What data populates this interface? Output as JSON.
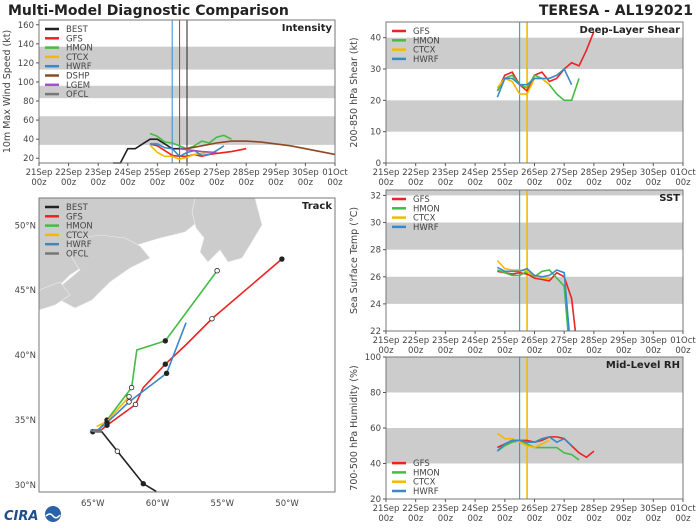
{
  "header": {
    "title": "Multi-Model Diagnostic Comparison",
    "storm": "TERESA - AL192021"
  },
  "logo": {
    "text": "CIRA"
  },
  "colors": {
    "BEST": "#222222",
    "GFS": "#ee2222",
    "HMON": "#44bb44",
    "CTCX": "#f5b800",
    "HWRF": "#3a88c8",
    "DSHP": "#8b4a22",
    "LGEM": "#a050c8",
    "OFCL": "#777777",
    "band": "#cccccc",
    "land": "#cccccc"
  },
  "time_ticks": {
    "days": [
      "21Sep",
      "22Sep",
      "23Sep",
      "24Sep",
      "25Sep",
      "26Sep",
      "27Sep",
      "28Sep",
      "29Sep",
      "30Sep",
      "01Oct"
    ],
    "hour": "00z"
  },
  "chart_data": [
    {
      "id": "intensity",
      "type": "line",
      "title": "Intensity",
      "ylabel": "10m Max Wind Speed (kt)",
      "ylim": [
        15,
        165
      ],
      "yticks": [
        20,
        40,
        60,
        80,
        100,
        120,
        140,
        160
      ],
      "bands": [
        [
          34,
          64
        ],
        [
          83,
          96
        ],
        [
          113,
          137
        ]
      ],
      "legend": [
        "BEST",
        "GFS",
        "HMON",
        "CTCX",
        "HWRF",
        "DSHP",
        "LGEM",
        "OFCL"
      ],
      "legend_position": "top-left",
      "vlines": [
        {
          "model": "HWRF",
          "t": "25Sep 12z"
        },
        {
          "model": "DSHP",
          "t": "25Sep 18z"
        },
        {
          "model": "OFCL",
          "t": "26Sep 00z"
        },
        {
          "model": "BEST",
          "t": "26Sep 00z"
        }
      ],
      "series": [
        {
          "name": "BEST",
          "x": [
            "23Sep 12z",
            "23Sep 18z",
            "24Sep 00z",
            "24Sep 06z",
            "24Sep 12z",
            "24Sep 18z",
            "25Sep 00z",
            "25Sep 06z",
            "25Sep 12z",
            "25Sep 18z",
            "26Sep 00z"
          ],
          "values": [
            15,
            15,
            30,
            30,
            35,
            40,
            40,
            35,
            30,
            30,
            30
          ]
        },
        {
          "name": "GFS",
          "x": [
            "24Sep 18z",
            "25Sep 00z",
            "25Sep 06z",
            "25Sep 12z",
            "25Sep 18z",
            "26Sep 00z",
            "26Sep 06z",
            "26Sep 12z",
            "26Sep 18z",
            "27Sep 00z",
            "27Sep 12z",
            "28Sep 00z"
          ],
          "values": [
            35,
            33,
            28,
            23,
            22,
            22,
            24,
            22,
            24,
            25,
            27,
            30
          ]
        },
        {
          "name": "HMON",
          "x": [
            "24Sep 18z",
            "25Sep 00z",
            "25Sep 06z",
            "25Sep 12z",
            "25Sep 18z",
            "26Sep 00z",
            "26Sep 06z",
            "26Sep 12z",
            "26Sep 18z",
            "27Sep 00z",
            "27Sep 06z",
            "27Sep 12z"
          ],
          "values": [
            46,
            43,
            37,
            36,
            33,
            30,
            33,
            38,
            36,
            42,
            44,
            40
          ]
        },
        {
          "name": "CTCX",
          "x": [
            "24Sep 18z",
            "25Sep 00z",
            "25Sep 06z",
            "25Sep 12z",
            "25Sep 18z",
            "26Sep 00z",
            "26Sep 06z",
            "26Sep 12z",
            "26Sep 18z"
          ],
          "values": [
            34,
            26,
            22,
            22,
            19,
            21,
            24,
            25,
            26
          ]
        },
        {
          "name": "HWRF",
          "x": [
            "24Sep 18z",
            "25Sep 00z",
            "25Sep 06z",
            "25Sep 12z",
            "25Sep 18z",
            "26Sep 00z",
            "26Sep 06z",
            "26Sep 12z",
            "26Sep 18z",
            "27Sep 00z",
            "27Sep 06z"
          ],
          "values": [
            35,
            35,
            31,
            30,
            22,
            26,
            28,
            23,
            24,
            28,
            33
          ]
        },
        {
          "name": "DSHP",
          "x": [
            "25Sep 18z",
            "26Sep 00z",
            "26Sep 12z",
            "27Sep 00z",
            "27Sep 12z",
            "28Sep 00z",
            "28Sep 12z",
            "29Sep 00z",
            "29Sep 12z",
            "30Sep 00z",
            "30Sep 12z",
            "01Oct 00z"
          ],
          "values": [
            30,
            30,
            33,
            36,
            38,
            38,
            37,
            35,
            33,
            30,
            27,
            24
          ]
        },
        {
          "name": "LGEM",
          "x": [
            "25Sep 18z",
            "26Sep 00z",
            "26Sep 12z",
            "27Sep 00z"
          ],
          "values": [
            30,
            29,
            27,
            26
          ]
        }
      ]
    },
    {
      "id": "shear",
      "type": "line",
      "title": "Deep-Layer Shear",
      "ylabel": "200-850 hPa Shear (kt)",
      "ylim": [
        0,
        45
      ],
      "yticks": [
        0,
        10,
        20,
        30,
        40
      ],
      "bands": [
        [
          10,
          20
        ],
        [
          30,
          40
        ]
      ],
      "legend": [
        "GFS",
        "HMON",
        "CTCX",
        "HWRF"
      ],
      "legend_position": "top-left",
      "vlines": [
        {
          "model": "HWRF",
          "t": "25Sep 12z"
        },
        {
          "model": "CTCX",
          "t": "25Sep 18z"
        }
      ],
      "series": [
        {
          "name": "GFS",
          "x": [
            "24Sep 18z",
            "25Sep 00z",
            "25Sep 06z",
            "25Sep 12z",
            "25Sep 18z",
            "26Sep 00z",
            "26Sep 06z",
            "26Sep 12z",
            "26Sep 18z",
            "27Sep 00z",
            "27Sep 06z",
            "27Sep 12z",
            "27Sep 18z",
            "28Sep 00z"
          ],
          "values": [
            23,
            28,
            29,
            25,
            23,
            28,
            29,
            26,
            27,
            30,
            32,
            31,
            36,
            42
          ]
        },
        {
          "name": "HMON",
          "x": [
            "24Sep 18z",
            "25Sep 00z",
            "25Sep 06z",
            "25Sep 12z",
            "25Sep 18z",
            "26Sep 00z",
            "26Sep 06z",
            "26Sep 12z",
            "26Sep 18z",
            "27Sep 00z",
            "27Sep 06z",
            "27Sep 12z"
          ],
          "values": [
            23,
            27,
            28,
            25,
            24,
            28,
            27,
            25,
            22,
            20,
            20,
            27
          ]
        },
        {
          "name": "CTCX",
          "x": [
            "24Sep 18z",
            "25Sep 00z",
            "25Sep 06z",
            "25Sep 12z",
            "25Sep 18z",
            "26Sep 00z",
            "26Sep 06z",
            "26Sep 12z"
          ],
          "values": [
            24,
            27,
            26,
            22,
            22,
            27,
            27,
            25
          ]
        },
        {
          "name": "HWRF",
          "x": [
            "24Sep 18z",
            "25Sep 00z",
            "25Sep 06z",
            "25Sep 12z",
            "25Sep 18z",
            "26Sep 00z",
            "26Sep 06z",
            "26Sep 12z",
            "26Sep 18z",
            "27Sep 00z",
            "27Sep 06z"
          ],
          "values": [
            21,
            27,
            27,
            25,
            25,
            27,
            27,
            27,
            28,
            30,
            25
          ]
        }
      ]
    },
    {
      "id": "sst",
      "type": "line",
      "title": "SST",
      "ylabel": "Sea Surface Temp (°C)",
      "ylim": [
        22,
        32.4
      ],
      "yticks": [
        22,
        24,
        26,
        28,
        30,
        32
      ],
      "bands": [
        [
          24,
          26
        ],
        [
          28,
          30
        ],
        [
          32,
          32.4
        ]
      ],
      "legend": [
        "GFS",
        "HMON",
        "CTCX",
        "HWRF"
      ],
      "legend_position": "top-left",
      "vlines": [
        {
          "model": "HWRF",
          "t": "25Sep 12z"
        },
        {
          "model": "CTCX",
          "t": "25Sep 18z"
        }
      ],
      "series": [
        {
          "name": "GFS",
          "x": [
            "24Sep 18z",
            "25Sep 00z",
            "25Sep 06z",
            "25Sep 12z",
            "25Sep 18z",
            "26Sep 00z",
            "26Sep 06z",
            "26Sep 12z",
            "26Sep 18z",
            "27Sep 00z",
            "27Sep 06z",
            "27Sep 09z"
          ],
          "values": [
            26.4,
            26.3,
            26.2,
            26.3,
            26.2,
            25.9,
            25.8,
            25.7,
            26.3,
            26.0,
            24.4,
            22
          ]
        },
        {
          "name": "HMON",
          "x": [
            "24Sep 18z",
            "25Sep 00z",
            "25Sep 06z",
            "25Sep 12z",
            "25Sep 18z",
            "26Sep 00z",
            "26Sep 06z",
            "26Sep 12z",
            "26Sep 18z",
            "27Sep 00z",
            "27Sep 03z"
          ],
          "values": [
            26.5,
            26.3,
            26.1,
            26.1,
            26.4,
            26.0,
            26.4,
            26.5,
            25.9,
            25.3,
            22
          ]
        },
        {
          "name": "CTCX",
          "x": [
            "24Sep 18z",
            "25Sep 00z",
            "25Sep 06z",
            "25Sep 12z",
            "25Sep 18z",
            "26Sep 00z",
            "26Sep 06z",
            "26Sep 12z"
          ],
          "values": [
            27.2,
            26.6,
            26.5,
            26.5,
            26.4,
            26.1,
            25.9,
            25.9
          ]
        },
        {
          "name": "HWRF",
          "x": [
            "24Sep 18z",
            "25Sep 00z",
            "25Sep 06z",
            "25Sep 12z",
            "25Sep 18z",
            "26Sep 00z",
            "26Sep 06z",
            "26Sep 12z",
            "26Sep 18z",
            "27Sep 00z",
            "27Sep 04z"
          ],
          "values": [
            26.7,
            26.4,
            26.4,
            26.4,
            26.6,
            26.1,
            26.0,
            26.1,
            26.5,
            26.3,
            22
          ]
        }
      ]
    },
    {
      "id": "rh",
      "type": "line",
      "title": "Mid-Level RH",
      "ylabel": "700-500 hPa Humidity (%)",
      "ylim": [
        20,
        100
      ],
      "yticks": [
        20,
        40,
        60,
        80,
        100
      ],
      "bands": [
        [
          40,
          60
        ],
        [
          80,
          100
        ]
      ],
      "legend": [
        "GFS",
        "HMON",
        "CTCX",
        "HWRF"
      ],
      "legend_position": "bottom-left",
      "vlines": [
        {
          "model": "HWRF",
          "t": "25Sep 12z"
        },
        {
          "model": "CTCX",
          "t": "25Sep 18z"
        }
      ],
      "series": [
        {
          "name": "GFS",
          "x": [
            "24Sep 18z",
            "25Sep 00z",
            "25Sep 06z",
            "25Sep 12z",
            "25Sep 18z",
            "26Sep 00z",
            "26Sep 06z",
            "26Sep 12z",
            "26Sep 18z",
            "27Sep 00z",
            "27Sep 06z",
            "27Sep 12z",
            "27Sep 18z",
            "28Sep 00z"
          ],
          "values": [
            49,
            51,
            53,
            53,
            53,
            52,
            53,
            55,
            55,
            54,
            50,
            46,
            43.5,
            47
          ]
        },
        {
          "name": "HMON",
          "x": [
            "24Sep 18z",
            "25Sep 00z",
            "25Sep 06z",
            "25Sep 12z",
            "25Sep 18z",
            "26Sep 00z",
            "26Sep 06z",
            "26Sep 12z",
            "26Sep 18z",
            "27Sep 00z",
            "27Sep 06z",
            "27Sep 12z"
          ],
          "values": [
            47,
            50,
            52,
            53,
            51,
            49,
            49,
            49,
            49,
            46,
            45,
            42
          ]
        },
        {
          "name": "CTCX",
          "x": [
            "24Sep 18z",
            "25Sep 00z",
            "25Sep 06z",
            "25Sep 12z",
            "25Sep 18z",
            "26Sep 00z",
            "26Sep 06z",
            "26Sep 12z"
          ],
          "values": [
            57,
            54,
            54,
            52,
            50,
            49,
            51,
            53
          ]
        },
        {
          "name": "HWRF",
          "x": [
            "24Sep 18z",
            "25Sep 00z",
            "25Sep 06z",
            "25Sep 12z",
            "25Sep 18z",
            "26Sep 00z",
            "26Sep 06z",
            "26Sep 12z",
            "26Sep 18z",
            "27Sep 00z",
            "27Sep 06z"
          ],
          "values": [
            47,
            51,
            53,
            53,
            52,
            52,
            54,
            55,
            52,
            54,
            50
          ]
        }
      ]
    },
    {
      "id": "track",
      "type": "line",
      "title": "Track",
      "xlim": [
        -69.15,
        -46.3
      ],
      "ylim": [
        29.46,
        52.1
      ],
      "xticks": [
        {
          "v": -65,
          "label": "65°W"
        },
        {
          "v": -60,
          "label": "60°W"
        },
        {
          "v": -55,
          "label": "55°W"
        },
        {
          "v": -50,
          "label": "50°W"
        }
      ],
      "yticks": [
        {
          "v": 30,
          "label": "30°N"
        },
        {
          "v": 35,
          "label": "35°N"
        },
        {
          "v": 40,
          "label": "40°N"
        },
        {
          "v": 45,
          "label": "45°N"
        },
        {
          "v": 50,
          "label": "50°N"
        }
      ],
      "legend": [
        "BEST",
        "GFS",
        "HMON",
        "CTCX",
        "HWRF",
        "OFCL"
      ],
      "legend_position": "top-left",
      "series": [
        {
          "name": "BEST",
          "lon": [
            -65.0,
            -64.3,
            -63.1,
            -61.1,
            -60.1
          ],
          "lat": [
            34.1,
            34.1,
            32.6,
            30.1,
            29.5
          ],
          "markers": [
            "filled",
            "none",
            "open",
            "filled",
            "none"
          ]
        },
        {
          "name": "GFS",
          "lon": [
            -64.4,
            -63.9,
            -61.7,
            -61.1,
            -59.4,
            -57.8,
            -55.8,
            -50.4
          ],
          "lat": [
            34.2,
            34.6,
            36.2,
            37.5,
            39.3,
            40.8,
            42.8,
            47.4
          ],
          "markers": [
            "none",
            "filled",
            "open",
            "none",
            "filled",
            "none",
            "open",
            "filled"
          ]
        },
        {
          "name": "HMON",
          "lon": [
            -64.6,
            -63.9,
            -62.0,
            -61.6,
            -59.4,
            -55.4
          ],
          "lat": [
            34.2,
            35.0,
            37.5,
            40.4,
            41.1,
            46.5
          ],
          "markers": [
            "none",
            "filled",
            "open",
            "none",
            "filled",
            "open"
          ]
        },
        {
          "name": "CTCX",
          "lon": [
            -64.7,
            -63.9,
            -62.2
          ],
          "lat": [
            34.5,
            34.9,
            36.8
          ],
          "markers": [
            "none",
            "none",
            "open"
          ]
        },
        {
          "name": "HWRF",
          "lon": [
            -65.2,
            -64.8,
            -63.9,
            -62.2,
            -59.3,
            -57.8
          ],
          "lat": [
            34.2,
            34.1,
            34.8,
            36.4,
            38.6,
            42.5
          ],
          "markers": [
            "none",
            "none",
            "filled",
            "open",
            "filled",
            "none"
          ]
        },
        {
          "name": "OFCL",
          "lon": [
            -65.0,
            -64.3
          ],
          "lat": [
            34.2,
            34.2
          ],
          "markers": [
            "none",
            "none"
          ]
        }
      ]
    }
  ]
}
